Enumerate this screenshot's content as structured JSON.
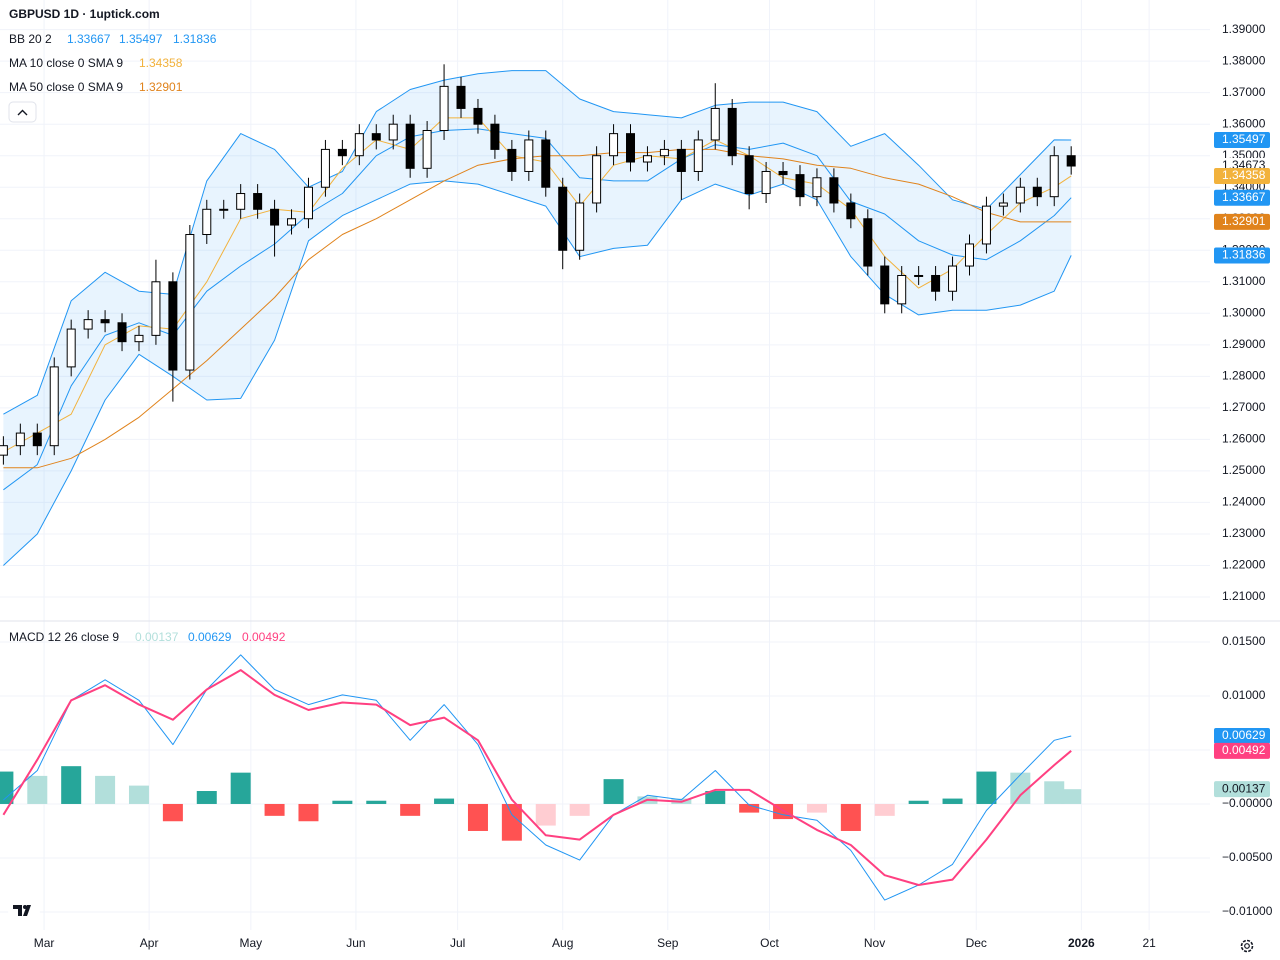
{
  "chart_data": [
    {
      "type": "candlestick",
      "title": "GBPUSD 1D · 1uptick.com",
      "x": [
        -12,
        -7,
        -2,
        3,
        8,
        13,
        18,
        23,
        28,
        33,
        38,
        43,
        48,
        53,
        58,
        63,
        68,
        73,
        78,
        83,
        88,
        93,
        98,
        103,
        108,
        113,
        118,
        123,
        128,
        133,
        138,
        143,
        148,
        153,
        158,
        163,
        168,
        173,
        178,
        183,
        188,
        193,
        198,
        203,
        208,
        213,
        218,
        223,
        228,
        233,
        238,
        243,
        248,
        253,
        258,
        263,
        268,
        273,
        278,
        283,
        288,
        293,
        298,
        303
      ],
      "open": [
        1.255,
        1.258,
        1.262,
        1.258,
        1.283,
        1.295,
        1.298,
        1.297,
        1.291,
        1.293,
        1.31,
        1.282,
        1.325,
        1.333,
        1.333,
        1.338,
        1.333,
        1.328,
        1.33,
        1.34,
        1.352,
        1.35,
        1.357,
        1.355,
        1.36,
        1.346,
        1.358,
        1.372,
        1.365,
        1.36,
        1.352,
        1.345,
        1.355,
        1.34,
        1.32,
        1.335,
        1.35,
        1.357,
        1.348,
        1.35,
        1.352,
        1.345,
        1.355,
        1.365,
        1.35,
        1.338,
        1.345,
        1.344,
        1.337,
        1.343,
        1.335,
        1.33,
        1.315,
        1.303,
        1.312,
        1.312,
        1.307,
        1.315,
        1.322,
        1.334,
        1.335,
        1.34,
        1.337,
        1.35
      ],
      "high": [
        1.261,
        1.265,
        1.265,
        1.286,
        1.298,
        1.301,
        1.301,
        1.3,
        1.296,
        1.317,
        1.313,
        1.328,
        1.336,
        1.336,
        1.341,
        1.341,
        1.336,
        1.333,
        1.343,
        1.355,
        1.355,
        1.36,
        1.36,
        1.363,
        1.363,
        1.361,
        1.379,
        1.375,
        1.368,
        1.363,
        1.355,
        1.358,
        1.358,
        1.343,
        1.338,
        1.353,
        1.36,
        1.36,
        1.353,
        1.355,
        1.355,
        1.358,
        1.373,
        1.368,
        1.353,
        1.348,
        1.348,
        1.347,
        1.346,
        1.346,
        1.338,
        1.333,
        1.318,
        1.315,
        1.315,
        1.315,
        1.318,
        1.325,
        1.337,
        1.338,
        1.343,
        1.343,
        1.353,
        1.353
      ],
      "low": [
        1.252,
        1.255,
        1.255,
        1.255,
        1.28,
        1.292,
        1.294,
        1.288,
        1.288,
        1.29,
        1.272,
        1.279,
        1.322,
        1.33,
        1.33,
        1.33,
        1.318,
        1.325,
        1.327,
        1.337,
        1.347,
        1.347,
        1.352,
        1.352,
        1.343,
        1.343,
        1.355,
        1.362,
        1.357,
        1.349,
        1.342,
        1.342,
        1.337,
        1.314,
        1.317,
        1.332,
        1.347,
        1.345,
        1.345,
        1.347,
        1.336,
        1.342,
        1.352,
        1.347,
        1.333,
        1.335,
        1.341,
        1.334,
        1.334,
        1.332,
        1.327,
        1.312,
        1.3,
        1.3,
        1.309,
        1.304,
        1.304,
        1.312,
        1.319,
        1.331,
        1.332,
        1.334,
        1.334,
        1.344
      ],
      "close": [
        1.258,
        1.262,
        1.258,
        1.283,
        1.295,
        1.298,
        1.297,
        1.291,
        1.293,
        1.31,
        1.282,
        1.325,
        1.333,
        1.333,
        1.338,
        1.333,
        1.328,
        1.33,
        1.34,
        1.352,
        1.35,
        1.357,
        1.355,
        1.36,
        1.346,
        1.358,
        1.372,
        1.365,
        1.36,
        1.352,
        1.345,
        1.355,
        1.34,
        1.32,
        1.335,
        1.35,
        1.357,
        1.348,
        1.35,
        1.352,
        1.345,
        1.355,
        1.365,
        1.35,
        1.338,
        1.345,
        1.344,
        1.337,
        1.343,
        1.335,
        1.33,
        1.315,
        1.303,
        1.312,
        1.312,
        1.307,
        1.315,
        1.322,
        1.334,
        1.335,
        1.34,
        1.337,
        1.35,
        1.34673
      ],
      "up_color": "#ffffff",
      "down_color": "#000000",
      "wick_color": "#000000",
      "overlays": [
        {
          "name": "BB 20 2",
          "color": "#2196f3",
          "fill_color": "#2196f3",
          "x": [
            -12,
            -2,
            8,
            18,
            28,
            38,
            48,
            58,
            68,
            78,
            88,
            98,
            108,
            118,
            128,
            138,
            148,
            158,
            168,
            178,
            188,
            198,
            208,
            218,
            228,
            238,
            248,
            258,
            268,
            278,
            288,
            298,
            303
          ],
          "upper": [
            1.268,
            1.274,
            1.304,
            1.313,
            1.307,
            1.306,
            1.342,
            1.357,
            1.352,
            1.34,
            1.345,
            1.364,
            1.371,
            1.374,
            1.376,
            1.377,
            1.377,
            1.368,
            1.364,
            1.363,
            1.362,
            1.366,
            1.367,
            1.367,
            1.364,
            1.353,
            1.357,
            1.347,
            1.336,
            1.333,
            1.344,
            1.355,
            1.35497
          ],
          "middle": [
            1.244,
            1.252,
            1.277,
            1.293,
            1.297,
            1.293,
            1.307,
            1.315,
            1.322,
            1.3315,
            1.338,
            1.35,
            1.356,
            1.358,
            1.3585,
            1.357,
            1.3555,
            1.343,
            1.342,
            1.342,
            1.349,
            1.3535,
            1.352,
            1.354,
            1.35,
            1.3355,
            1.3315,
            1.323,
            1.3185,
            1.317,
            1.323,
            1.331,
            1.33667
          ],
          "lower": [
            1.22,
            1.23,
            1.25,
            1.2725,
            1.287,
            1.28,
            1.2725,
            1.273,
            1.2915,
            1.323,
            1.331,
            1.336,
            1.341,
            1.342,
            1.341,
            1.3375,
            1.334,
            1.318,
            1.3206,
            1.3216,
            1.336,
            1.341,
            1.3375,
            1.341,
            1.336,
            1.318,
            1.306,
            1.2995,
            1.301,
            1.301,
            1.3026,
            1.307,
            1.31836
          ]
        },
        {
          "name": "MA 10 close 0 SMA 9",
          "color": "#f2b23c",
          "x": [
            -12,
            -2,
            8,
            18,
            28,
            38,
            48,
            58,
            68,
            78,
            88,
            98,
            108,
            118,
            128,
            138,
            148,
            158,
            168,
            178,
            188,
            198,
            208,
            218,
            228,
            238,
            248,
            258,
            268,
            278,
            288,
            298,
            303
          ],
          "values": [
            1.256,
            1.262,
            1.268,
            1.29,
            1.296,
            1.295,
            1.31,
            1.33,
            1.333,
            1.332,
            1.346,
            1.355,
            1.352,
            1.362,
            1.362,
            1.35,
            1.348,
            1.334,
            1.347,
            1.35,
            1.349,
            1.355,
            1.35,
            1.343,
            1.341,
            1.333,
            1.318,
            1.308,
            1.314,
            1.325,
            1.335,
            1.34,
            1.34358
          ]
        },
        {
          "name": "MA 50 close 0 SMA 9",
          "color": "#e0831c",
          "x": [
            -12,
            -2,
            8,
            18,
            28,
            38,
            48,
            58,
            68,
            78,
            88,
            98,
            108,
            118,
            128,
            138,
            148,
            158,
            168,
            178,
            188,
            198,
            208,
            218,
            228,
            238,
            248,
            258,
            268,
            278,
            288,
            298,
            303
          ],
          "values": [
            1.251,
            1.251,
            1.254,
            1.26,
            1.267,
            1.276,
            1.285,
            1.295,
            1.305,
            1.317,
            1.325,
            1.33,
            1.336,
            1.342,
            1.347,
            1.349,
            1.35,
            1.35,
            1.351,
            1.351,
            1.352,
            1.352,
            1.35,
            1.349,
            1.347,
            1.346,
            1.343,
            1.341,
            1.337,
            1.332,
            1.329,
            1.329,
            1.32901
          ]
        }
      ],
      "xlim": [
        -13,
        341
      ],
      "xticks": [
        {
          "value": 0,
          "label": "Mar"
        },
        {
          "value": 31,
          "label": "Apr"
        },
        {
          "value": 61,
          "label": "May"
        },
        {
          "value": 92,
          "label": "Jun"
        },
        {
          "value": 122,
          "label": "Jul"
        },
        {
          "value": 153,
          "label": "Aug"
        },
        {
          "value": 184,
          "label": "Sep"
        },
        {
          "value": 214,
          "label": "Oct"
        },
        {
          "value": 245,
          "label": "Nov"
        },
        {
          "value": 275,
          "label": "Dec"
        },
        {
          "value": 306,
          "label": "2026"
        },
        {
          "value": 326,
          "label": "21"
        }
      ],
      "ylim": [
        1.2027,
        1.3994
      ],
      "yticks": [
        {
          "value": 1.21,
          "label": "1.21000"
        },
        {
          "value": 1.22,
          "label": "1.22000"
        },
        {
          "value": 1.23,
          "label": "1.23000"
        },
        {
          "value": 1.24,
          "label": "1.24000"
        },
        {
          "value": 1.25,
          "label": "1.25000"
        },
        {
          "value": 1.26,
          "label": "1.26000"
        },
        {
          "value": 1.27,
          "label": "1.27000"
        },
        {
          "value": 1.28,
          "label": "1.28000"
        },
        {
          "value": 1.29,
          "label": "1.29000"
        },
        {
          "value": 1.3,
          "label": "1.30000"
        },
        {
          "value": 1.31,
          "label": "1.31000"
        },
        {
          "value": 1.32,
          "label": "1.32000"
        },
        {
          "value": 1.33,
          "label": "1.33000"
        },
        {
          "value": 1.34,
          "label": "1.34000"
        },
        {
          "value": 1.35,
          "label": "1.35000"
        },
        {
          "value": 1.36,
          "label": "1.36000"
        },
        {
          "value": 1.37,
          "label": "1.37000"
        },
        {
          "value": 1.38,
          "label": "1.38000"
        },
        {
          "value": 1.39,
          "label": "1.39000"
        }
      ],
      "grid": true
    },
    {
      "type": "macd",
      "name": "MACD 12 26 close 9",
      "x": [
        -12,
        -2,
        8,
        18,
        28,
        38,
        48,
        58,
        68,
        78,
        88,
        98,
        108,
        118,
        128,
        138,
        148,
        158,
        168,
        178,
        188,
        198,
        208,
        218,
        228,
        238,
        248,
        258,
        268,
        278,
        288,
        298,
        303
      ],
      "histogram": [
        0.003,
        0.0026,
        0.0035,
        0.0026,
        0.0017,
        -0.0016,
        0.0012,
        0.0029,
        -0.0011,
        -0.0016,
        0.0003,
        0.0003,
        -0.0011,
        0.0005,
        -0.0025,
        -0.0034,
        -0.002,
        -0.0011,
        0.0023,
        0.0007,
        0.0005,
        0.0012,
        -0.0008,
        -0.0014,
        -0.0008,
        -0.0025,
        -0.0011,
        0.0003,
        0.0005,
        0.003,
        0.0029,
        0.0021,
        0.00137
      ],
      "macd": [
        0.00037,
        0.0031,
        0.0096,
        0.0115,
        0.0096,
        0.0055,
        0.0106,
        0.0138,
        0.0106,
        0.0092,
        0.0101,
        0.0096,
        0.0059,
        0.0092,
        0.0055,
        -0.001,
        -0.0038,
        -0.0052,
        -0.001,
        0.0008,
        0.0004,
        0.0031,
        -0.0001,
        -0.001,
        -0.0015,
        -0.0043,
        -0.0089,
        -0.0075,
        -0.0056,
        -0.0006,
        0.0027,
        0.0059,
        0.00629
      ],
      "signal": [
        -0.001,
        0.0041,
        0.0096,
        0.011,
        0.0092,
        0.0078,
        0.0106,
        0.0124,
        0.0101,
        0.0087,
        0.0094,
        0.0092,
        0.0073,
        0.008,
        0.0059,
        0.0004,
        -0.0029,
        -0.0033,
        -0.001,
        0.0004,
        0.0002,
        0.0013,
        0.0013,
        -0.0006,
        -0.0024,
        -0.0038,
        -0.0066,
        -0.0075,
        -0.007,
        -0.0033,
        0.0008,
        0.0036,
        0.00492
      ],
      "macd_color": "#2196f3",
      "signal_color": "#ff4081",
      "histogram_colors": {
        "up": "#26a69a",
        "up_fading": "#b2dfdb",
        "down": "#ff5252",
        "down_fading": "#ffcdd2"
      },
      "ylim": [
        -0.01167,
        0.01685
      ],
      "yticks": [
        {
          "value": -0.01,
          "label": "−0.01000"
        },
        {
          "value": -0.005,
          "label": "−0.00500"
        },
        {
          "value": 0,
          "label": "−0.00000"
        },
        {
          "value": 0.005,
          "label": "0.00500"
        },
        {
          "value": 0.01,
          "label": "0.01000"
        },
        {
          "value": 0.015,
          "label": "0.01500"
        }
      ],
      "grid": true
    }
  ]
}
